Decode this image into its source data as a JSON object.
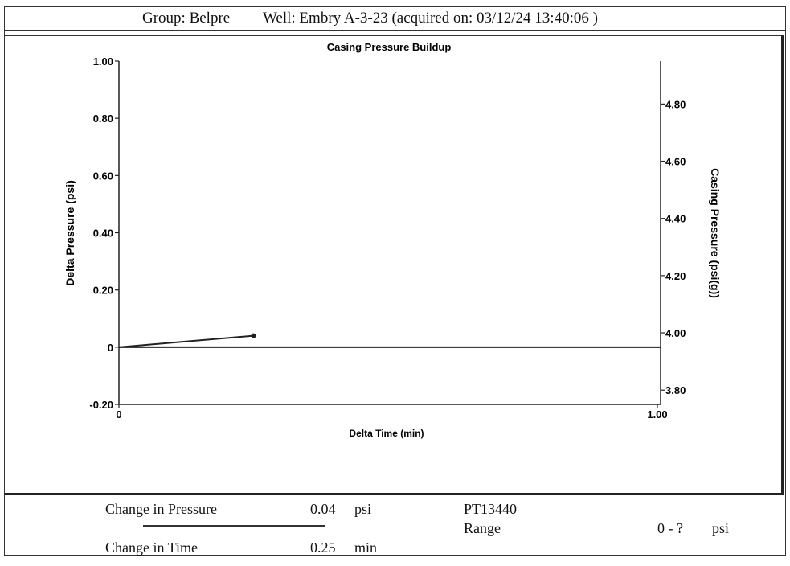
{
  "header": {
    "group": "Group: Belpre",
    "well": "Well: Embry A-3-23 (acquired on: 03/12/24 13:40:06 )"
  },
  "chart_data": {
    "type": "line",
    "title": "Casing Pressure Buildup",
    "xlabel": "Delta Time (min)",
    "ylabel_left": "Delta Pressure (psi)",
    "ylabel_right": "Casing Pressure (psi(g))",
    "x_ticks": [
      "0",
      "1.00"
    ],
    "y_left_ticks": [
      "1.00",
      "0.80",
      "0.60",
      "0.40",
      "0.20",
      "0",
      "-0.20"
    ],
    "y_right_ticks": [
      "4.80",
      "4.60",
      "4.40",
      "4.20",
      "4.00",
      "3.80"
    ],
    "xlim": [
      0,
      1.0
    ],
    "ylim_left": [
      -0.2,
      1.0
    ],
    "ylim_right": [
      3.75,
      4.95
    ],
    "grid": false,
    "series": [
      {
        "x": [
          0,
          0.25
        ],
        "y": [
          0,
          0.04
        ],
        "color": "#222222"
      }
    ]
  },
  "stats": {
    "change_in_pressure_label": "Change in Pressure",
    "change_in_pressure_value": "0.04",
    "change_in_pressure_unit": "psi",
    "change_in_time_label": "Change in Time",
    "change_in_time_value": "0.25",
    "change_in_time_unit": "min",
    "gauge_id": "PT13440",
    "range_label": "Range",
    "range_value": "0 - ?",
    "range_unit": "psi"
  }
}
